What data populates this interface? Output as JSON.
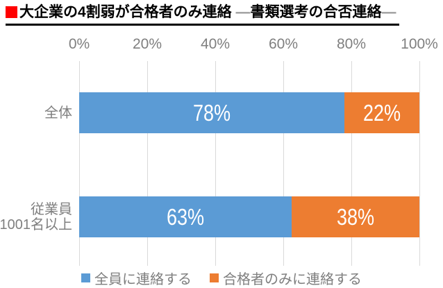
{
  "title": {
    "bullet_icon": "red-square",
    "bullet_color": "#FF0000",
    "main": "大企業の4割弱が合格者のみ連絡",
    "dash1": "―",
    "sub": "書類選考の合否連絡",
    "dash2": "―"
  },
  "colors": {
    "axis_text": "#7F7F7F",
    "grid": "#D9D9D9",
    "title_dash": "#949494",
    "bar_blue": "#5B9BD5",
    "bar_orange": "#ED7D31",
    "value_label": "#FFFFFF"
  },
  "chart_data": {
    "type": "bar",
    "orientation": "horizontal-stacked",
    "title": "大企業の4割弱が合格者のみ連絡 ―書類選考の合否連絡―",
    "x_ticks": [
      "0%",
      "20%",
      "40%",
      "60%",
      "80%",
      "100%"
    ],
    "x_range": [
      0,
      100
    ],
    "grid": true,
    "axis_position": "top",
    "legend_position": "bottom",
    "categories": [
      "全体",
      "従業員\n1001名以上"
    ],
    "series": [
      {
        "name": "全員に連絡する",
        "color": "#5B9BD5",
        "values": [
          78,
          63
        ],
        "labels": [
          "78%",
          "63%"
        ]
      },
      {
        "name": "合格者のみに連絡する",
        "color": "#ED7D31",
        "values": [
          22,
          38
        ],
        "labels": [
          "22%",
          "38%"
        ]
      }
    ]
  }
}
